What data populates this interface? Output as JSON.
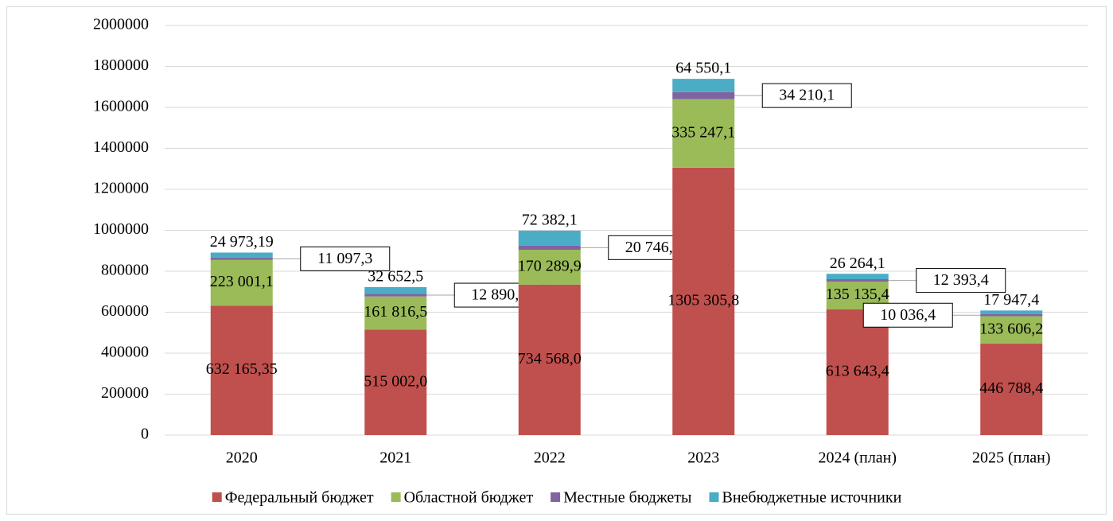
{
  "chart_data": {
    "type": "stacked_bar",
    "categories": [
      "2020",
      "2021",
      "2022",
      "2023",
      "2024 (план)",
      "2025 (план)"
    ],
    "series": [
      {
        "name": "Федеральный бюджет",
        "color": "#c0504d",
        "values": [
          632165.35,
          515002.0,
          734568.0,
          1305305.8,
          613643.4,
          446788.4
        ],
        "value_labels": [
          "632 165,35",
          "515 002,0",
          "734 568,0",
          "1305 305,8",
          "613 643,4",
          "446 788,4"
        ]
      },
      {
        "name": "Областной бюджет",
        "color": "#9bbb59",
        "values": [
          223001.1,
          161816.5,
          170289.9,
          335247.1,
          135135.4,
          133606.2
        ],
        "value_labels": [
          "223 001,1",
          "161 816,5",
          "170 289,9",
          "335 247,1",
          "135 135,4",
          "133 606,2"
        ]
      },
      {
        "name": "Местные бюджеты",
        "color": "#8064a2",
        "values": [
          11097.3,
          12890.0,
          20746.5,
          34210.1,
          12393.4,
          10036.4
        ],
        "value_labels": [
          "11 097,3",
          "12 890,0",
          "20 746,5",
          "34 210,1",
          "12 393,4",
          "10 036,4"
        ]
      },
      {
        "name": "Внебюджетные источники",
        "color": "#4bacc6",
        "values": [
          24973.19,
          32652.5,
          72382.1,
          64550.1,
          26264.1,
          17947.4
        ],
        "value_labels": [
          "24 973,19",
          "32 652,5",
          "72 382,1",
          "64 550,1",
          "26 264,1",
          "17 947,4"
        ]
      }
    ],
    "ylim": [
      0,
      2000000
    ],
    "yticks": [
      0,
      200000,
      400000,
      600000,
      800000,
      1000000,
      1200000,
      1400000,
      1600000,
      1800000,
      2000000
    ],
    "grid": true,
    "legend": "bottom"
  }
}
